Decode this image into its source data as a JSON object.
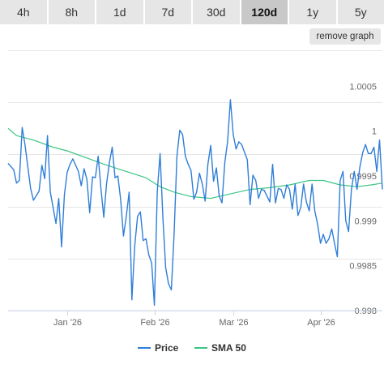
{
  "tabs": [
    {
      "label": "4h",
      "active": false
    },
    {
      "label": "8h",
      "active": false
    },
    {
      "label": "1d",
      "active": false
    },
    {
      "label": "7d",
      "active": false
    },
    {
      "label": "30d",
      "active": false
    },
    {
      "label": "120d",
      "active": true
    },
    {
      "label": "1y",
      "active": false
    },
    {
      "label": "5y",
      "active": false
    }
  ],
  "remove_graph_label": "remove graph",
  "chart_data": {
    "type": "line",
    "x_range": [
      "2025-12-11",
      "2026-04-23"
    ],
    "ylim": [
      0.998,
      1.0009
    ],
    "y_ticks": [
      {
        "value": 0.998,
        "label": "0.998"
      },
      {
        "value": 0.9985,
        "label": "0.9985"
      },
      {
        "value": 0.999,
        "label": "0.999"
      },
      {
        "value": 0.9995,
        "label": "0.9995"
      },
      {
        "value": 1.0,
        "label": "1"
      },
      {
        "value": 1.0005,
        "label": "1.0005"
      }
    ],
    "x_ticks": [
      {
        "date": "2026-01-01",
        "label": "Jan '26"
      },
      {
        "date": "2026-02-01",
        "label": "Feb '26"
      },
      {
        "date": "2026-03-01",
        "label": "Mar '26"
      },
      {
        "date": "2026-04-01",
        "label": "Apr '26"
      }
    ],
    "grid": "horizontal",
    "legend_position": "bottom-center",
    "series": [
      {
        "name": "Price",
        "color": "#2f7ed8",
        "points": [
          [
            "2025-12-11",
            0.99964
          ],
          [
            "2025-12-13",
            0.99957
          ],
          [
            "2025-12-14",
            0.99942
          ],
          [
            "2025-12-15",
            0.99945
          ],
          [
            "2025-12-16",
            1.00004
          ],
          [
            "2025-12-17",
            0.99985
          ],
          [
            "2025-12-19",
            0.99936
          ],
          [
            "2025-12-20",
            0.99923
          ],
          [
            "2025-12-22",
            0.99933
          ],
          [
            "2025-12-23",
            0.99962
          ],
          [
            "2025-12-24",
            0.99947
          ],
          [
            "2025-12-25",
            0.99995
          ],
          [
            "2025-12-26",
            0.99932
          ],
          [
            "2025-12-28",
            0.99897
          ],
          [
            "2025-12-29",
            0.99925
          ],
          [
            "2025-12-30",
            0.99871
          ],
          [
            "2025-12-31",
            0.99929
          ],
          [
            "2026-01-01",
            0.99954
          ],
          [
            "2026-01-02",
            0.99963
          ],
          [
            "2026-01-03",
            0.99969
          ],
          [
            "2026-01-05",
            0.99955
          ],
          [
            "2026-01-06",
            0.99939
          ],
          [
            "2026-01-07",
            0.99958
          ],
          [
            "2026-01-08",
            0.99946
          ],
          [
            "2026-01-09",
            0.99909
          ],
          [
            "2026-01-10",
            0.99949
          ],
          [
            "2026-01-11",
            0.99948
          ],
          [
            "2026-01-12",
            0.99972
          ],
          [
            "2026-01-13",
            0.99936
          ],
          [
            "2026-01-14",
            0.99904
          ],
          [
            "2026-01-15",
            0.99942
          ],
          [
            "2026-01-16",
            0.99965
          ],
          [
            "2026-01-17",
            0.99982
          ],
          [
            "2026-01-18",
            0.99948
          ],
          [
            "2026-01-19",
            0.9995
          ],
          [
            "2026-01-20",
            0.99924
          ],
          [
            "2026-01-21",
            0.99883
          ],
          [
            "2026-01-22",
            0.99905
          ],
          [
            "2026-01-23",
            0.99932
          ],
          [
            "2026-01-24",
            0.99812
          ],
          [
            "2026-01-25",
            0.99872
          ],
          [
            "2026-01-26",
            0.99905
          ],
          [
            "2026-01-27",
            0.9991
          ],
          [
            "2026-01-28",
            0.99878
          ],
          [
            "2026-01-29",
            0.9988
          ],
          [
            "2026-01-30",
            0.99862
          ],
          [
            "2026-01-31",
            0.99853
          ],
          [
            "2026-02-01",
            0.99806
          ],
          [
            "2026-02-02",
            0.99932
          ],
          [
            "2026-02-03",
            0.99975
          ],
          [
            "2026-02-04",
            0.99903
          ],
          [
            "2026-02-05",
            0.99848
          ],
          [
            "2026-02-06",
            0.9983
          ],
          [
            "2026-02-07",
            0.99823
          ],
          [
            "2026-02-08",
            0.99885
          ],
          [
            "2026-02-09",
            0.99972
          ],
          [
            "2026-02-10",
            1.00001
          ],
          [
            "2026-02-11",
            0.99996
          ],
          [
            "2026-02-12",
            0.99972
          ],
          [
            "2026-02-13",
            0.99963
          ],
          [
            "2026-02-14",
            0.99956
          ],
          [
            "2026-02-15",
            0.99924
          ],
          [
            "2026-02-16",
            0.99932
          ],
          [
            "2026-02-17",
            0.99953
          ],
          [
            "2026-02-18",
            0.99941
          ],
          [
            "2026-02-19",
            0.99922
          ],
          [
            "2026-02-20",
            0.99963
          ],
          [
            "2026-02-21",
            0.99984
          ],
          [
            "2026-02-22",
            0.99944
          ],
          [
            "2026-02-23",
            0.99959
          ],
          [
            "2026-02-24",
            0.99928
          ],
          [
            "2026-02-25",
            0.9992
          ],
          [
            "2026-02-26",
            0.99965
          ],
          [
            "2026-02-27",
            0.99988
          ],
          [
            "2026-02-28",
            1.00035
          ],
          [
            "2026-03-01",
            0.99996
          ],
          [
            "2026-03-02",
            0.9998
          ],
          [
            "2026-03-03",
            0.99988
          ],
          [
            "2026-03-04",
            0.99985
          ],
          [
            "2026-03-06",
            0.99968
          ],
          [
            "2026-03-07",
            0.99918
          ],
          [
            "2026-03-08",
            0.99951
          ],
          [
            "2026-03-09",
            0.99945
          ],
          [
            "2026-03-10",
            0.99925
          ],
          [
            "2026-03-11",
            0.99935
          ],
          [
            "2026-03-12",
            0.99934
          ],
          [
            "2026-03-14",
            0.99921
          ],
          [
            "2026-03-15",
            0.99963
          ],
          [
            "2026-03-16",
            0.9992
          ],
          [
            "2026-03-17",
            0.99936
          ],
          [
            "2026-03-18",
            0.99935
          ],
          [
            "2026-03-19",
            0.99925
          ],
          [
            "2026-03-20",
            0.9994
          ],
          [
            "2026-03-21",
            0.99935
          ],
          [
            "2026-03-22",
            0.99913
          ],
          [
            "2026-03-23",
            0.99941
          ],
          [
            "2026-03-24",
            0.99906
          ],
          [
            "2026-03-25",
            0.99915
          ],
          [
            "2026-03-26",
            0.99941
          ],
          [
            "2026-03-27",
            0.99921
          ],
          [
            "2026-03-28",
            0.99911
          ],
          [
            "2026-03-29",
            0.99941
          ],
          [
            "2026-03-30",
            0.99911
          ],
          [
            "2026-03-31",
            0.99896
          ],
          [
            "2026-04-01",
            0.99875
          ],
          [
            "2026-04-02",
            0.99885
          ],
          [
            "2026-04-03",
            0.99875
          ],
          [
            "2026-04-04",
            0.9988
          ],
          [
            "2026-04-05",
            0.99891
          ],
          [
            "2026-04-06",
            0.99875
          ],
          [
            "2026-04-07",
            0.9986
          ],
          [
            "2026-04-08",
            0.99945
          ],
          [
            "2026-04-09",
            0.99955
          ],
          [
            "2026-04-10",
            0.999
          ],
          [
            "2026-04-11",
            0.99888
          ],
          [
            "2026-04-12",
            0.99935
          ],
          [
            "2026-04-13",
            0.99955
          ],
          [
            "2026-04-14",
            0.99935
          ],
          [
            "2026-04-15",
            0.9996
          ],
          [
            "2026-04-16",
            0.99976
          ],
          [
            "2026-04-17",
            0.99985
          ],
          [
            "2026-04-18",
            0.99975
          ],
          [
            "2026-04-19",
            0.99975
          ],
          [
            "2026-04-20",
            0.99982
          ],
          [
            "2026-04-21",
            0.99955
          ],
          [
            "2026-04-22",
            0.9999
          ],
          [
            "2026-04-23",
            0.99935
          ]
        ]
      },
      {
        "name": "SMA 50",
        "color": "#3cc583",
        "points": [
          [
            "2025-12-11",
            1.00003
          ],
          [
            "2025-12-14",
            0.99995
          ],
          [
            "2025-12-20",
            0.9999
          ],
          [
            "2025-12-27",
            0.99982
          ],
          [
            "2026-01-01",
            0.99978
          ],
          [
            "2026-01-08",
            0.9997
          ],
          [
            "2026-01-15",
            0.99962
          ],
          [
            "2026-01-22",
            0.99955
          ],
          [
            "2026-01-29",
            0.99948
          ],
          [
            "2026-02-03",
            0.99938
          ],
          [
            "2026-02-08",
            0.99932
          ],
          [
            "2026-02-14",
            0.99927
          ],
          [
            "2026-02-21",
            0.99925
          ],
          [
            "2026-02-28",
            0.9993
          ],
          [
            "2026-03-07",
            0.99935
          ],
          [
            "2026-03-14",
            0.99937
          ],
          [
            "2026-03-21",
            0.9994
          ],
          [
            "2026-03-28",
            0.99945
          ],
          [
            "2026-04-02",
            0.99945
          ],
          [
            "2026-04-08",
            0.9994
          ],
          [
            "2026-04-14",
            0.99938
          ],
          [
            "2026-04-19",
            0.9994
          ],
          [
            "2026-04-23",
            0.99942
          ]
        ]
      }
    ]
  }
}
